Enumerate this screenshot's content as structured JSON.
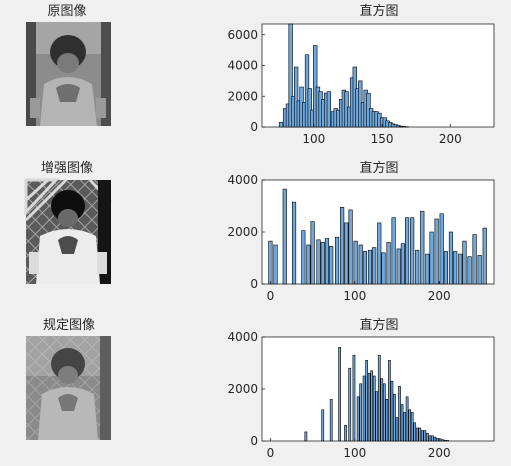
{
  "rows": [
    {
      "image_title": "原图像",
      "plot_title": "直方图"
    },
    {
      "image_title": "增强图像",
      "plot_title": "直方图"
    },
    {
      "image_title": "规定图像",
      "plot_title": "直方图"
    }
  ],
  "colors": {
    "bar_fill": "#6fa8dc",
    "bar_edge": "#000000"
  },
  "chart_data": [
    {
      "type": "bar",
      "title": "直方图",
      "xlabel": "",
      "ylabel": "",
      "xlim": [
        62,
        232
      ],
      "ylim": [
        0,
        6700
      ],
      "xticks": [
        100,
        150,
        200
      ],
      "yticks": [
        0,
        2000,
        4000,
        6000
      ],
      "grid": false,
      "bar_width": 2.7,
      "x": [
        76,
        79,
        81,
        83,
        85,
        87,
        89,
        91,
        93,
        95,
        97,
        99,
        101,
        103,
        105,
        107,
        109,
        111,
        114,
        116,
        118,
        120,
        122,
        124,
        126,
        128,
        130,
        132,
        134,
        136,
        138,
        140,
        142,
        144,
        146,
        148,
        150,
        152,
        154,
        156,
        158,
        160,
        162,
        164,
        166,
        168
      ],
      "values": [
        300,
        1200,
        1500,
        6700,
        2000,
        3900,
        1700,
        2600,
        1600,
        4700,
        2500,
        1100,
        5300,
        2600,
        2300,
        1800,
        2200,
        2300,
        1000,
        1200,
        1100,
        1800,
        2400,
        2300,
        1300,
        3200,
        3900,
        2500,
        3000,
        1600,
        2400,
        2200,
        1200,
        1000,
        1000,
        900,
        600,
        600,
        400,
        300,
        200,
        150,
        100,
        50,
        30,
        20
      ]
    },
    {
      "type": "bar",
      "title": "直方图",
      "xlabel": "",
      "ylabel": "",
      "xlim": [
        -10,
        265
      ],
      "ylim": [
        0,
        4000
      ],
      "xticks": [
        0,
        100,
        200
      ],
      "yticks": [
        0,
        2000,
        4000
      ],
      "grid": false,
      "bar_width": 4.2,
      "x": [
        0,
        6,
        17,
        28,
        39,
        45,
        50,
        57,
        62,
        67,
        72,
        79,
        85,
        90,
        95,
        101,
        107,
        112,
        118,
        123,
        129,
        134,
        140,
        146,
        152,
        157,
        162,
        168,
        174,
        180,
        186,
        191,
        197,
        203,
        208,
        214,
        219,
        225,
        230,
        236,
        242,
        248,
        254
      ],
      "values": [
        1650,
        1500,
        3650,
        3150,
        2050,
        1500,
        2400,
        1700,
        1600,
        1750,
        1450,
        1800,
        2950,
        2350,
        2850,
        1650,
        1500,
        1250,
        1300,
        1400,
        2350,
        1200,
        1600,
        2550,
        1350,
        1550,
        2550,
        2550,
        1300,
        2800,
        1150,
        2000,
        2500,
        2700,
        1250,
        2000,
        1250,
        1150,
        1650,
        1050,
        1900,
        1100,
        2150
      ]
    },
    {
      "type": "bar",
      "title": "直方图",
      "xlabel": "",
      "ylabel": "",
      "xlim": [
        -10,
        265
      ],
      "ylim": [
        0,
        4000
      ],
      "xticks": [
        0,
        100,
        200
      ],
      "yticks": [
        0,
        2000,
        4000
      ],
      "grid": false,
      "bar_width": 2.5,
      "x": [
        42,
        62,
        72,
        82,
        89,
        94,
        99,
        104,
        107,
        111,
        114,
        117,
        120,
        123,
        126,
        129,
        132,
        135,
        138,
        141,
        144,
        147,
        150,
        153,
        156,
        159,
        162,
        165,
        168,
        171,
        174,
        177,
        180,
        183,
        186,
        189,
        192,
        195,
        198,
        201,
        204,
        207,
        210
      ],
      "values": [
        350,
        1200,
        1600,
        3600,
        600,
        2800,
        3300,
        1700,
        2200,
        2500,
        3100,
        2600,
        2700,
        2500,
        1900,
        3300,
        2400,
        2200,
        1600,
        3100,
        2300,
        1800,
        900,
        2100,
        1400,
        1100,
        1700,
        1200,
        1100,
        700,
        500,
        500,
        400,
        400,
        300,
        200,
        200,
        150,
        100,
        80,
        50,
        30,
        20
      ]
    }
  ]
}
